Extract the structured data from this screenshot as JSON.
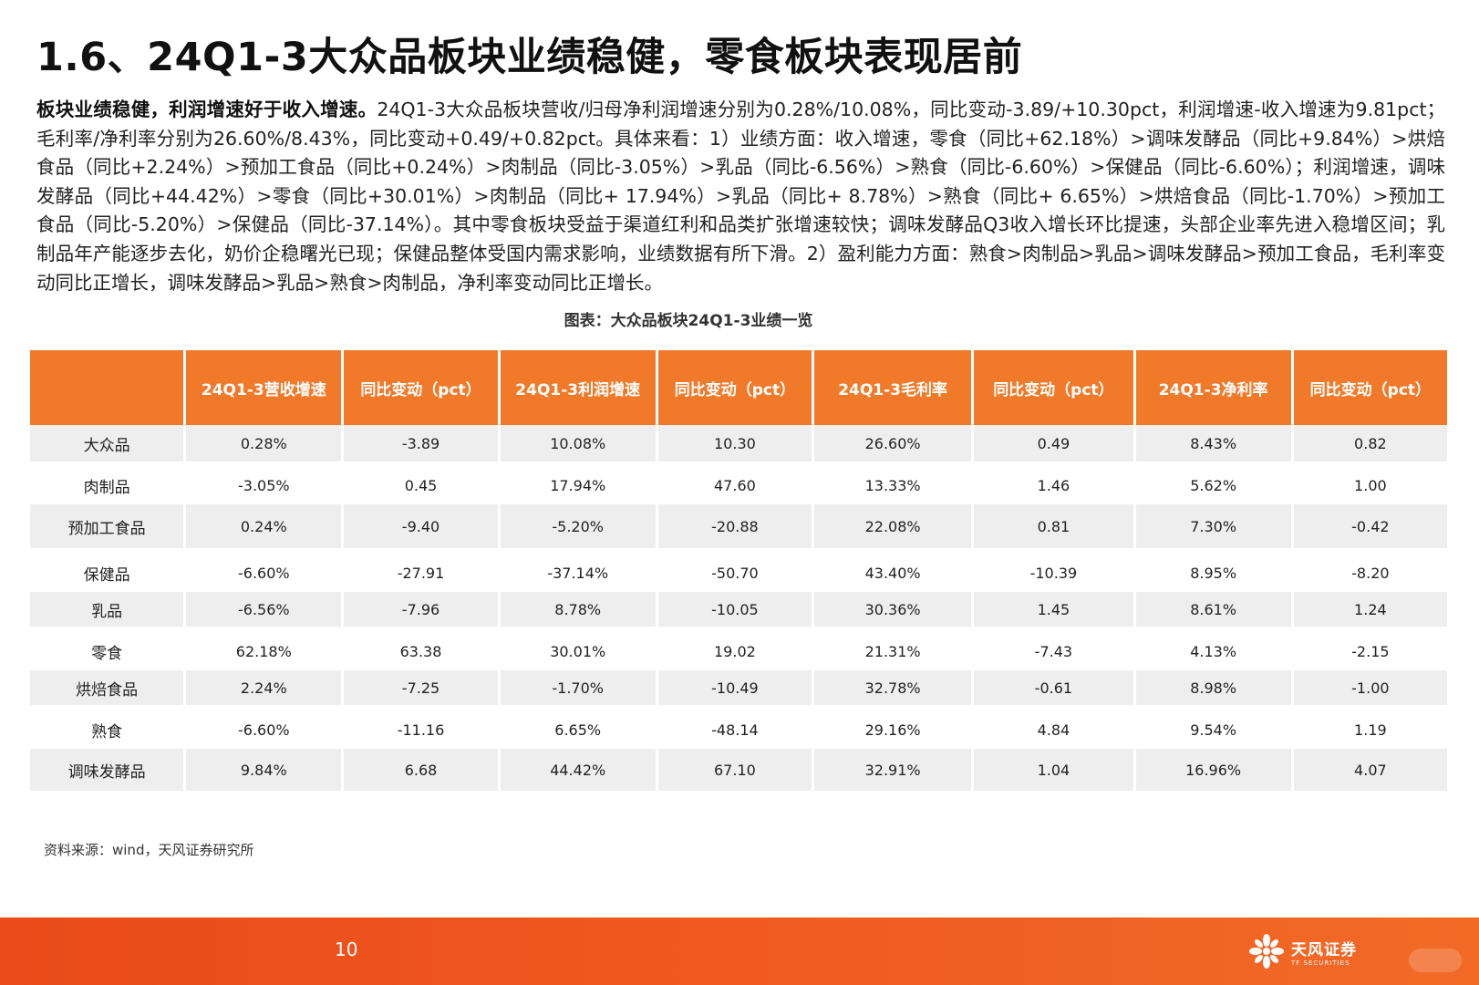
{
  "page": {
    "title": "1.6、24Q1-3大众品板块业绩稳健，零食板块表现居前",
    "summary_lead": "板块业绩稳健，利润增速好于收入增速。",
    "summary_body": "24Q1-3大众品板块营收/归母净利润增速分别为0.28%/10.08%，同比变动-3.89/+10.30pct，利润增速-收入增速为9.81pct；毛利率/净利率分别为26.60%/8.43%，同比变动+0.49/+0.82pct。具体来看：1）业绩方面：收入增速，零食（同比+62.18%）>调味发酵品（同比+9.84%）>烘焙食品（同比+2.24%）>预加工食品（同比+0.24%）>肉制品（同比-3.05%）>乳品（同比-6.56%）>熟食（同比-6.60%）>保健品（同比-6.60%）；利润增速，调味发酵品（同比+44.42%）>零食（同比+30.01%）>肉制品（同比+ 17.94%）>乳品（同比+ 8.78%）>熟食（同比+ 6.65%）>烘焙食品（同比-1.70%）>预加工食品（同比-5.20%）>保健品（同比-37.14%）。其中零食板块受益于渠道红利和品类扩张增速较快；调味发酵品Q3收入增长环比提速，头部企业率先进入稳增区间；乳制品年产能逐步去化，奶价企稳曙光已现；保健品整体受国内需求影响，业绩数据有所下滑。2）盈利能力方面：熟食>肉制品>乳品>调味发酵品>预加工食品，毛利率变动同比正增长，调味发酵品>乳品>熟食>肉制品，净利率变动同比正增长。",
    "figure_caption": "图表：大众品板块24Q1-3业绩一览",
    "source_note": "资料来源：wind，天风证券研究所",
    "page_number": "10",
    "brand_cn": "天风证券",
    "brand_en": "TF SECURITIES",
    "header_color": "#f07a2a",
    "footer_color": "#ea4a19"
  },
  "table": {
    "headers": [
      "",
      "24Q1-3营收增速",
      "同比变动（pct）",
      "24Q1-3利润增速",
      "同比变动（pct）",
      "24Q1-3毛利率",
      "同比变动（pct）",
      "24Q1-3净利率",
      "同比变动（pct）"
    ],
    "rows": [
      {
        "name": "大众品",
        "cells": [
          "0.28%",
          "-3.89",
          "10.08%",
          "10.30",
          "26.60%",
          "0.49",
          "8.43%",
          "0.82"
        ]
      },
      {
        "name": "肉制品",
        "cells": [
          "-3.05%",
          "0.45",
          "17.94%",
          "47.60",
          "13.33%",
          "1.46",
          "5.62%",
          "1.00"
        ]
      },
      {
        "name": "预加工食品",
        "cells": [
          "0.24%",
          "-9.40",
          "-5.20%",
          "-20.88",
          "22.08%",
          "0.81",
          "7.30%",
          "-0.42"
        ]
      },
      {
        "name": "保健品",
        "cells": [
          "-6.60%",
          "-27.91",
          "-37.14%",
          "-50.70",
          "43.40%",
          "-10.39",
          "8.95%",
          "-8.20"
        ]
      },
      {
        "name": "乳品",
        "cells": [
          "-6.56%",
          "-7.96",
          "8.78%",
          "-10.05",
          "30.36%",
          "1.45",
          "8.61%",
          "1.24"
        ]
      },
      {
        "name": "零食",
        "cells": [
          "62.18%",
          "63.38",
          "30.01%",
          "19.02",
          "21.31%",
          "-7.43",
          "4.13%",
          "-2.15"
        ]
      },
      {
        "name": "烘焙食品",
        "cells": [
          "2.24%",
          "-7.25",
          "-1.70%",
          "-10.49",
          "32.78%",
          "-0.61",
          "8.98%",
          "-1.00"
        ]
      },
      {
        "name": "熟食",
        "cells": [
          "-6.60%",
          "-11.16",
          "6.65%",
          "-48.14",
          "29.16%",
          "4.84",
          "9.54%",
          "1.19"
        ]
      },
      {
        "name": "调味发酵品",
        "cells": [
          "9.84%",
          "6.68",
          "44.42%",
          "67.10",
          "32.91%",
          "1.04",
          "16.96%",
          "4.07"
        ]
      }
    ]
  }
}
